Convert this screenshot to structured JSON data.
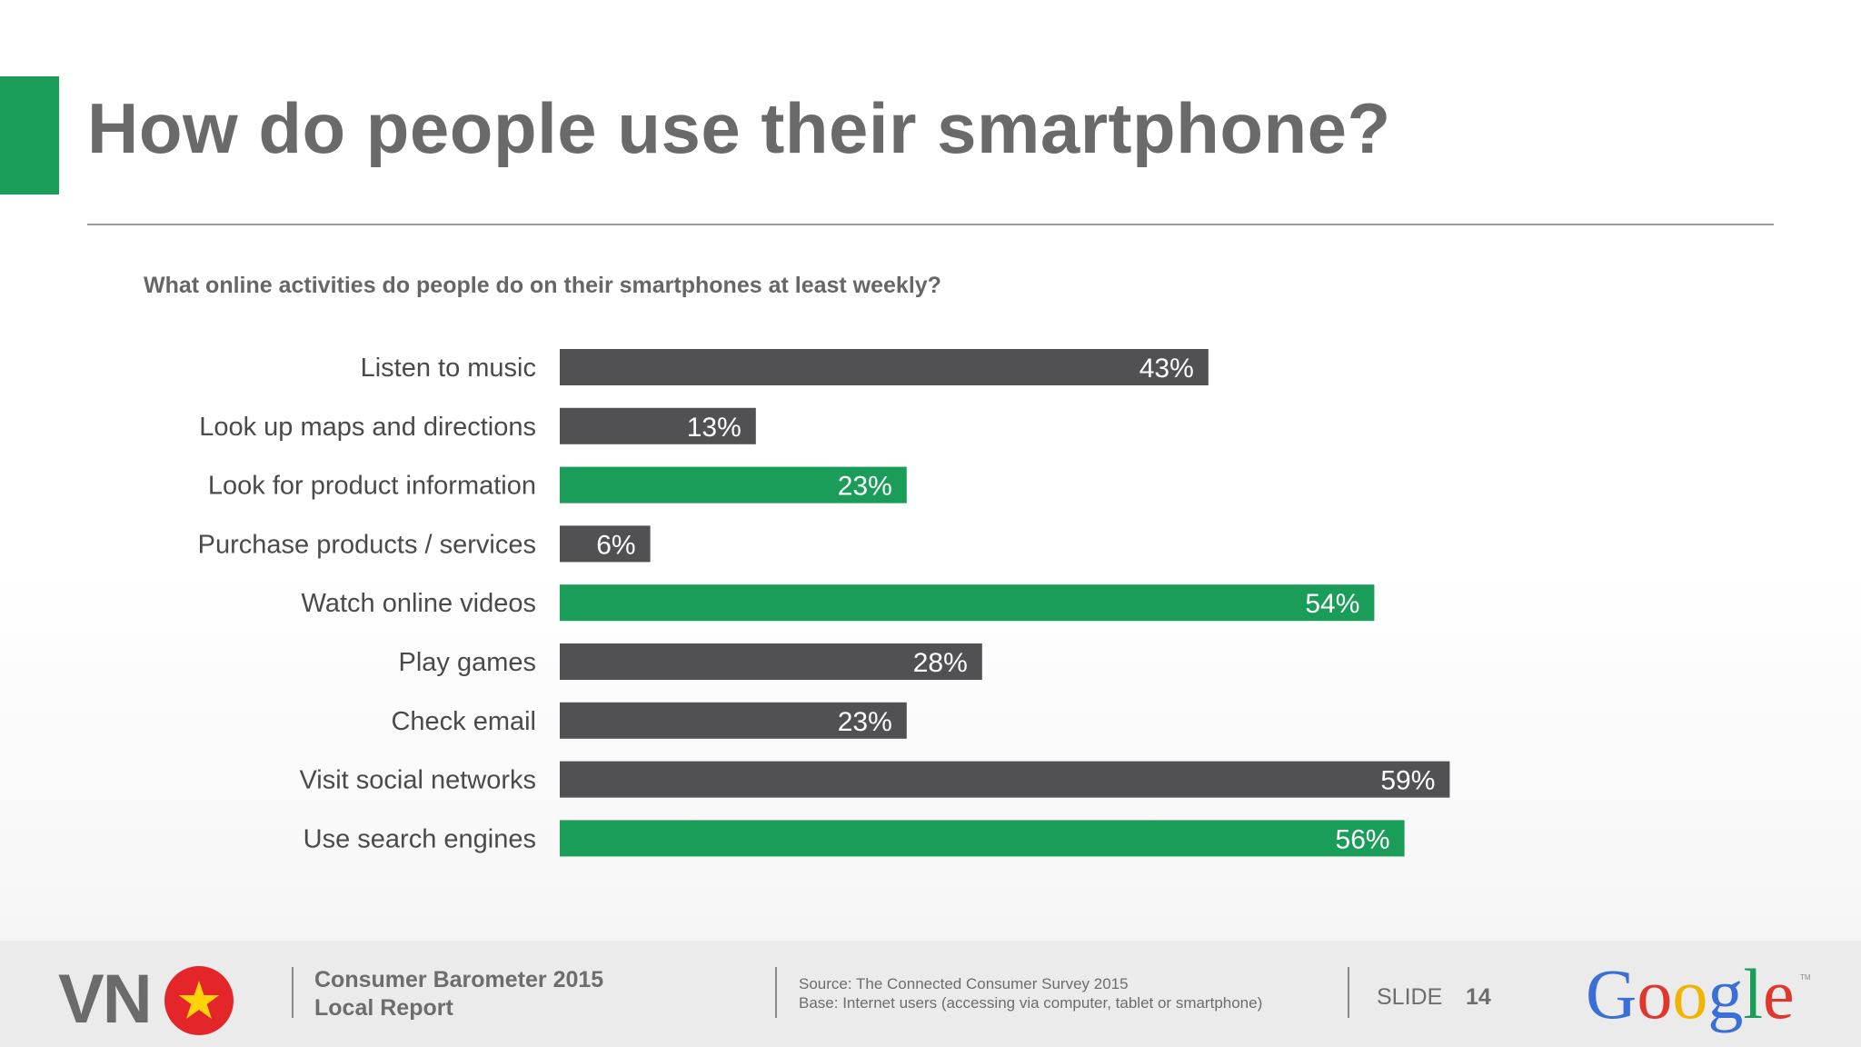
{
  "header": {
    "title": "How do people use their smartphone?",
    "accent_color": "#1a9d58"
  },
  "chart_data": {
    "type": "bar",
    "orientation": "horizontal",
    "title": "What online activities do people do on their smartphones at least weekly?",
    "categories": [
      "Listen to music",
      "Look up maps and directions",
      "Look for product information",
      "Purchase products / services",
      "Watch online videos",
      "Play games",
      "Check email",
      "Visit social networks",
      "Use search engines"
    ],
    "values": [
      43,
      13,
      23,
      6,
      54,
      28,
      23,
      59,
      56
    ],
    "value_labels": [
      "43%",
      "13%",
      "23%",
      "6%",
      "54%",
      "28%",
      "23%",
      "59%",
      "56%"
    ],
    "bar_colors": [
      "#515053",
      "#515053",
      "#1a9d58",
      "#515053",
      "#1a9d58",
      "#515053",
      "#515053",
      "#515053",
      "#1a9d58"
    ],
    "xlim": [
      0,
      100
    ],
    "grid": false,
    "legend": "none"
  },
  "footer": {
    "country_code": "VN",
    "flag_colors": {
      "field": "#e4262a",
      "star": "#ffd20a"
    },
    "report_title": "Consumer Barometer 2015",
    "report_subtitle": "Local Report",
    "source": "Source: The Connected Consumer Survey 2015",
    "base": "Base: Internet users (accessing via computer, tablet or smartphone)",
    "slide_label": "SLIDE",
    "slide_number": "14",
    "logo_text": "Google",
    "logo_tm": "TM",
    "logo_colors": [
      "#3a6fd8",
      "#e0362c",
      "#f2b400",
      "#3a6fd8",
      "#1a9d58",
      "#e0362c"
    ]
  }
}
